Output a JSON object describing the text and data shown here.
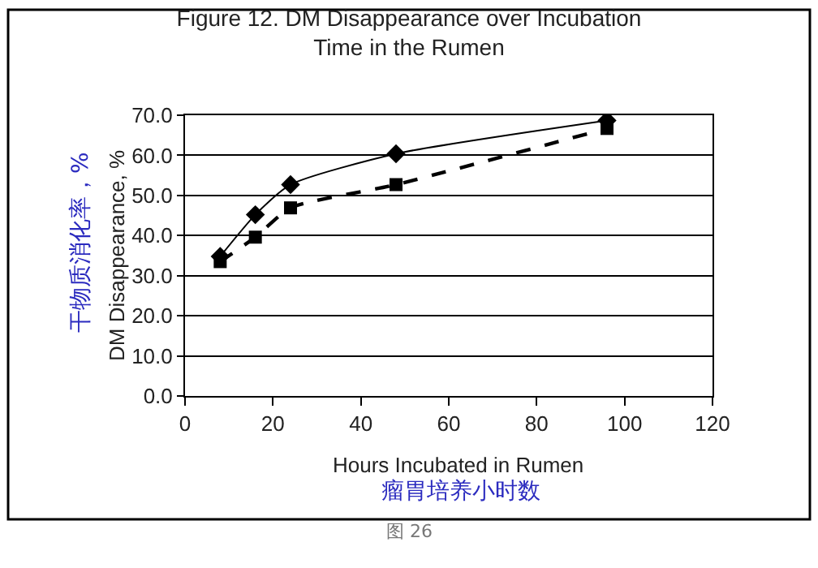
{
  "chart_data": {
    "type": "line",
    "title": "Figure 12. DM Disappearance over Incubation\nTime in the Rumen",
    "xlabel": "Hours Incubated in Rumen",
    "ylabel": "DM Disappearance, %",
    "annotations": [
      "干物质消化率，%",
      "瘤胃培养小时数",
      "图 26"
    ],
    "x": [
      8,
      16,
      24,
      48,
      96
    ],
    "series": [
      {
        "color": "#000000",
        "values": [
          34.8,
          45.2,
          52.7,
          60.4,
          68.7
        ],
        "marker": "diamond",
        "line_style": "solid"
      },
      {
        "color": "#000000",
        "values": [
          33.5,
          39.6,
          46.9,
          52.7,
          66.7
        ],
        "marker": "square",
        "line_style": "dashed"
      }
    ],
    "xlim": [
      0,
      120
    ],
    "xticks": [
      0,
      20,
      40,
      60,
      80,
      100,
      120
    ],
    "ylim": [
      0,
      70
    ],
    "yticks": [
      {
        "value": 0,
        "label": "0.0"
      },
      {
        "value": 10,
        "label": "10.0"
      },
      {
        "value": 20,
        "label": "20.0"
      },
      {
        "value": 30,
        "label": "30.0"
      },
      {
        "value": 40,
        "label": "40.0"
      },
      {
        "value": 50,
        "label": "50.0"
      },
      {
        "value": 60,
        "label": "60.0"
      },
      {
        "value": 70,
        "label": "70.0"
      }
    ],
    "grid": "y"
  }
}
